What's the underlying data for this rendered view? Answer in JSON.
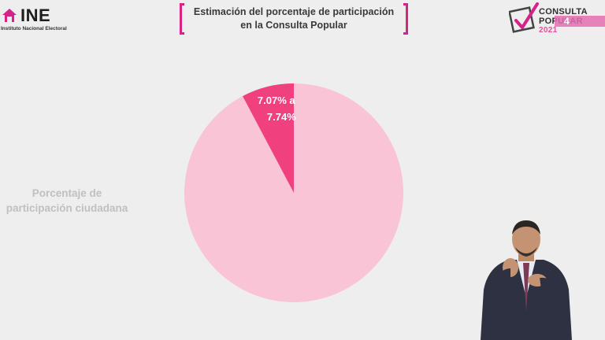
{
  "header": {
    "ine_logo_text": "INE",
    "ine_logo_subtext": "Instituto Nacional Electoral",
    "title_line1": "Estimación del porcentaje de participación",
    "title_line2": "en la Consulta Popular",
    "consulta_logo_line1": "CONSULTA",
    "consulta_logo_line2": "POPULAR",
    "consulta_logo_line3": "2021",
    "channel_number": "4"
  },
  "colors": {
    "accent": "#d6238a",
    "pie_base": "#f8c4d6",
    "pie_slice": "#f0407e",
    "label_gray": "#c0c0c0"
  },
  "chart_data": {
    "type": "pie",
    "title": "Estimación del porcentaje de participación en la Consulta Popular",
    "label": "Porcentaje de participación ciudadana",
    "slices": [
      {
        "label": "7.07% a 7.74%",
        "value_low": 7.07,
        "value_high": 7.74,
        "value": 7.74,
        "color": "#f0407e"
      },
      {
        "label": "",
        "value": 92.26,
        "color": "#f8c4d6"
      }
    ],
    "slice_label_line1": "7.07% a",
    "slice_label_line2": "7.74%"
  },
  "icons": {
    "ine_mark": "ine-house-icon",
    "checkmark": "checkmark-icon"
  }
}
